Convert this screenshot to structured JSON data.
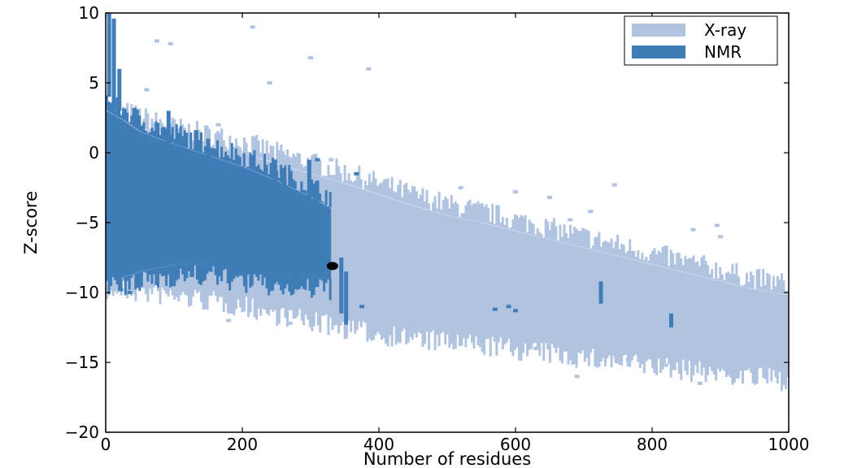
{
  "chart_data": {
    "type": "scatter",
    "title": "",
    "xlabel": "Number of residues",
    "ylabel": "Z-score",
    "xlim": [
      0,
      1000
    ],
    "ylim": [
      -20,
      10
    ],
    "xticks": [
      "0",
      "200",
      "400",
      "600",
      "800",
      "1000"
    ],
    "yticks": [
      "10",
      "5",
      "0",
      "−5",
      "−10",
      "−15",
      "−20"
    ],
    "grid": false,
    "legend_position": "top-right",
    "colors": {
      "xray": "#b0c4e0",
      "nmr": "#3f7cb8",
      "highlight": "#000000"
    },
    "series": [
      {
        "name": "X-ray",
        "color": "#b0c4e0",
        "band": {
          "x": [
            0,
            50,
            100,
            150,
            200,
            250,
            300,
            350,
            400,
            450,
            500,
            550,
            600,
            650,
            700,
            750,
            800,
            850,
            900,
            950,
            1000
          ],
          "upper": [
            2.5,
            1.8,
            1.0,
            0.5,
            0.0,
            -0.8,
            -1.5,
            -2.2,
            -3.0,
            -3.8,
            -4.5,
            -5.0,
            -5.6,
            -6.2,
            -6.8,
            -7.4,
            -8.0,
            -8.6,
            -9.2,
            -9.8,
            -10.2
          ],
          "lower": [
            -9.0,
            -9.2,
            -9.5,
            -9.8,
            -10.2,
            -10.8,
            -11.3,
            -11.8,
            -12.2,
            -12.5,
            -12.8,
            -13.0,
            -13.3,
            -13.6,
            -13.9,
            -14.2,
            -14.5,
            -14.8,
            -15.0,
            -15.3,
            -15.5
          ]
        },
        "outliers": [
          {
            "x": 215,
            "y": 9.0
          },
          {
            "x": 75,
            "y": 8.0
          },
          {
            "x": 95,
            "y": 7.8
          },
          {
            "x": 300,
            "y": 6.8
          },
          {
            "x": 385,
            "y": 6.0
          },
          {
            "x": 240,
            "y": 5.0
          },
          {
            "x": 60,
            "y": 4.5
          },
          {
            "x": 165,
            "y": 2.0
          },
          {
            "x": 330,
            "y": -0.5
          },
          {
            "x": 410,
            "y": -2.0
          },
          {
            "x": 520,
            "y": -2.5
          },
          {
            "x": 600,
            "y": -2.8
          },
          {
            "x": 650,
            "y": -3.2
          },
          {
            "x": 680,
            "y": -4.8
          },
          {
            "x": 710,
            "y": -4.2
          },
          {
            "x": 745,
            "y": -2.3
          },
          {
            "x": 895,
            "y": -5.2
          },
          {
            "x": 900,
            "y": -6.0
          },
          {
            "x": 860,
            "y": -5.5
          },
          {
            "x": 180,
            "y": -12.0
          },
          {
            "x": 270,
            "y": -12.2
          },
          {
            "x": 690,
            "y": -16.0
          },
          {
            "x": 870,
            "y": -16.5
          },
          {
            "x": 960,
            "y": -14.5
          },
          {
            "x": 765,
            "y": -14.8
          },
          {
            "x": 820,
            "y": -15.2
          },
          {
            "x": 630,
            "y": -14.0
          },
          {
            "x": 550,
            "y": -13.8
          }
        ]
      },
      {
        "name": "NMR",
        "color": "#3f7cb8",
        "band": {
          "x": [
            0,
            20,
            50,
            100,
            150,
            200,
            250,
            300,
            330
          ],
          "upper": [
            3.0,
            2.5,
            1.5,
            0.6,
            -0.2,
            -1.0,
            -2.0,
            -3.2,
            -4.0
          ],
          "lower": [
            -8.5,
            -9.0,
            -8.5,
            -8.0,
            -8.0,
            -8.5,
            -8.8,
            -9.0,
            -9.0
          ]
        },
        "stripes": [
          {
            "x": 5,
            "y_top": 10.0,
            "y_bottom": 4.0
          },
          {
            "x": 12,
            "y_top": 9.6,
            "y_bottom": 3.0
          },
          {
            "x": 20,
            "y_top": 6.0,
            "y_bottom": 3.0
          },
          {
            "x": 92,
            "y_top": 3.0,
            "y_bottom": -1.0
          },
          {
            "x": 150,
            "y_top": 1.0,
            "y_bottom": -4.0
          },
          {
            "x": 248,
            "y_top": -0.5,
            "y_bottom": -8.0
          },
          {
            "x": 262,
            "y_top": -2.0,
            "y_bottom": -8.0
          },
          {
            "x": 298,
            "y_top": -0.5,
            "y_bottom": -8.5
          },
          {
            "x": 308,
            "y_top": -3.0,
            "y_bottom": -9.0
          },
          {
            "x": 322,
            "y_top": -4.5,
            "y_bottom": -8.0
          },
          {
            "x": 345,
            "y_top": -7.5,
            "y_bottom": -11.5
          },
          {
            "x": 352,
            "y_top": -8.5,
            "y_bottom": -12.3
          },
          {
            "x": 725,
            "y_top": -9.2,
            "y_bottom": -10.8
          },
          {
            "x": 828,
            "y_top": -11.5,
            "y_bottom": -12.5
          }
        ],
        "outliers": [
          {
            "x": 310,
            "y": -0.5
          },
          {
            "x": 367,
            "y": -1.5
          },
          {
            "x": 375,
            "y": -11.0
          },
          {
            "x": 570,
            "y": -11.2
          },
          {
            "x": 590,
            "y": -11.0
          },
          {
            "x": 600,
            "y": -11.3
          },
          {
            "x": 35,
            "y": -10.0
          },
          {
            "x": 22,
            "y": -9.8
          }
        ]
      },
      {
        "name": "",
        "color": "#000000",
        "points": [
          {
            "x": 332,
            "y": -8.1
          }
        ]
      }
    ]
  }
}
